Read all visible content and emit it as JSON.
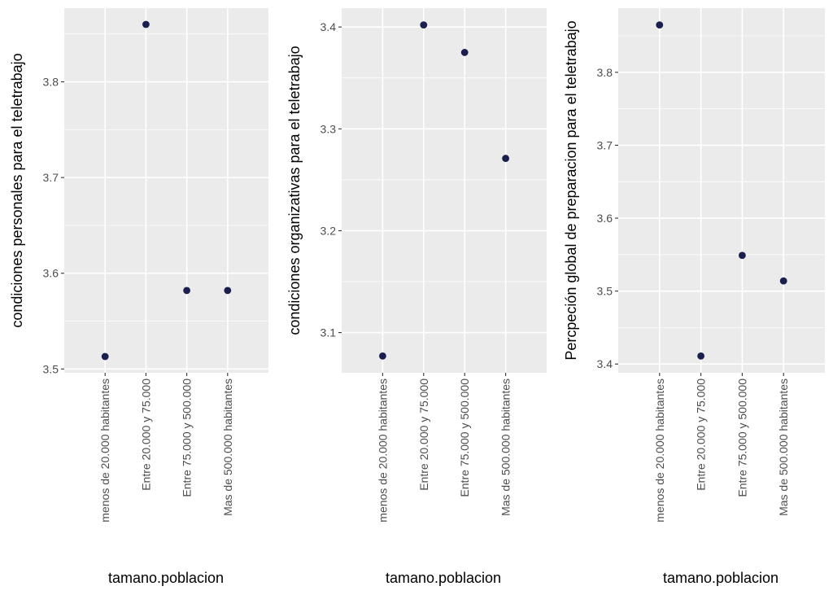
{
  "chart_data": [
    {
      "type": "scatter",
      "title": "",
      "xlabel": "tamano.poblacion",
      "ylabel": "condiciones personales para el teletrabajo",
      "categories": [
        "menos de 20.000 habitantes",
        "Entre 20.000 y 75.000",
        "Entre 75.000 y 500.000",
        "Mas de 500.000 habitantes"
      ],
      "values": [
        3.513,
        3.86,
        3.582,
        3.582
      ],
      "ylim": [
        3.496,
        3.877
      ],
      "yticks": [
        3.5,
        3.6,
        3.7,
        3.8
      ],
      "ytick_labels": [
        "3.5",
        "3.6",
        "3.7",
        "3.8"
      ],
      "point_color": "#1a1f4f",
      "grid": true
    },
    {
      "type": "scatter",
      "title": "",
      "xlabel": "tamano.poblacion",
      "ylabel": "condiciones organizativas para el teletrabajo",
      "categories": [
        "menos de 20.000 habitantes",
        "Entre 20.000 y 75.000",
        "Entre 75.000 y 500.000",
        "Mas de 500.000 habitantes"
      ],
      "values": [
        3.077,
        3.402,
        3.375,
        3.271
      ],
      "ylim": [
        3.0605,
        3.4185
      ],
      "yticks": [
        3.1,
        3.2,
        3.3,
        3.4
      ],
      "ytick_labels": [
        "3.1",
        "3.2",
        "3.3",
        "3.4"
      ],
      "point_color": "#1a1f4f",
      "grid": true
    },
    {
      "type": "scatter",
      "title": "",
      "xlabel": "tamano.poblacion",
      "ylabel": "Percpeción global de preparacion para el teletrabajo",
      "categories": [
        "menos de 20.000 habitantes",
        "Entre 20.000 y 75.000",
        "Entre 75.000 y 500.000",
        "Mas de 500.000 habitantes"
      ],
      "values": [
        3.865,
        3.411,
        3.549,
        3.514
      ],
      "ylim": [
        3.388,
        3.888
      ],
      "yticks": [
        3.4,
        3.5,
        3.6,
        3.7,
        3.8
      ],
      "ytick_labels": [
        "3.4",
        "3.5",
        "3.6",
        "3.7",
        "3.8"
      ],
      "point_color": "#1a1f4f",
      "grid": true
    }
  ]
}
